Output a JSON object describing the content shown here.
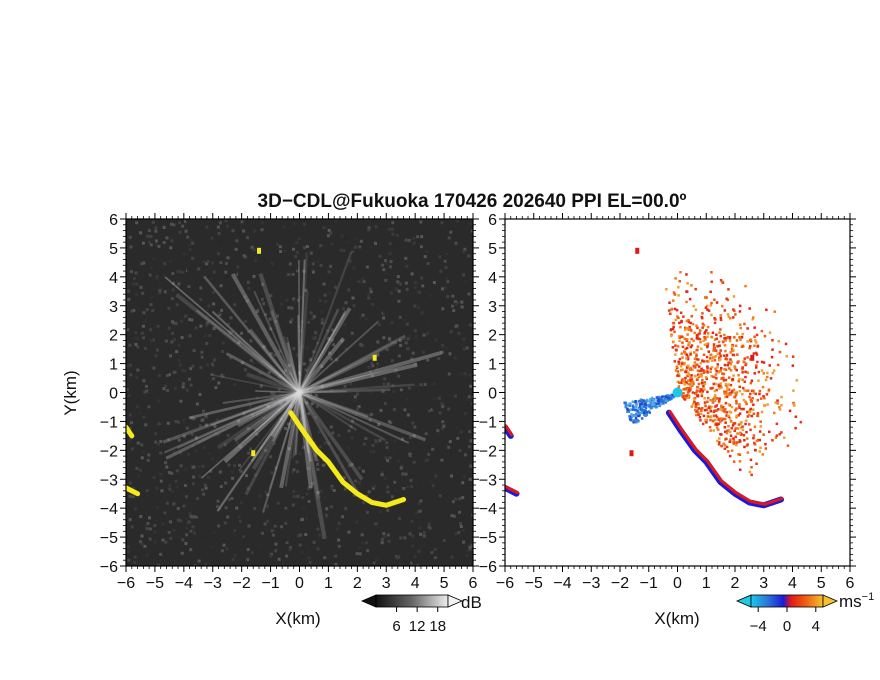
{
  "chart_data": {
    "type": "heatmap",
    "title": "3D−CDL@Fukuoka 170426 202640 PPI EL=00.0º",
    "panels": [
      {
        "name": "intensity",
        "xlabel": "X(km)",
        "ylabel": "Y(km)",
        "xlim": [
          -6,
          6
        ],
        "ylim": [
          -6,
          6
        ],
        "xticks": [
          "−6",
          "−5",
          "−4",
          "−3",
          "−2",
          "−1",
          "0",
          "1",
          "2",
          "3",
          "4",
          "5",
          "6"
        ],
        "yticks": [
          "6",
          "5",
          "4",
          "3",
          "2",
          "1",
          "0",
          "−1",
          "−2",
          "−3",
          "−4",
          "−5",
          "−6"
        ],
        "background": "#2a2a2a",
        "colorbar": {
          "unit": "dB",
          "ticks": [
            "6",
            "12",
            "18"
          ],
          "range": [
            0,
            21
          ]
        },
        "highlight_color": "#f5ea1a"
      },
      {
        "name": "velocity",
        "xlabel": "X(km)",
        "ylabel": "",
        "xlim": [
          -6,
          6
        ],
        "ylim": [
          -6,
          6
        ],
        "xticks": [
          "−6",
          "−5",
          "−4",
          "−3",
          "−2",
          "−1",
          "0",
          "1",
          "2",
          "3",
          "4",
          "5",
          "6"
        ],
        "yticks": [
          "6",
          "5",
          "4",
          "3",
          "2",
          "1",
          "0",
          "−1",
          "−2",
          "−3",
          "−4",
          "−5",
          "−6"
        ],
        "background": "#ffffff",
        "colorbar": {
          "unit": "ms",
          "unit_exponent": "−1",
          "ticks": [
            "−4",
            "0",
            "4"
          ],
          "range": [
            -5,
            5
          ]
        }
      }
    ],
    "echo_regions": [
      {
        "name": "southeast line",
        "points": [
          [
            -0.3,
            -0.7
          ],
          [
            0.1,
            -1.3
          ],
          [
            0.6,
            -2.0
          ],
          [
            1.0,
            -2.4
          ],
          [
            1.5,
            -3.1
          ],
          [
            2.0,
            -3.5
          ],
          [
            2.5,
            -3.8
          ],
          [
            3.0,
            -3.9
          ],
          [
            3.6,
            -3.7
          ]
        ]
      },
      {
        "name": "west edge upper",
        "points": [
          [
            -6.0,
            -1.2
          ],
          [
            -5.8,
            -1.5
          ]
        ]
      },
      {
        "name": "west edge lower",
        "points": [
          [
            -6.0,
            -3.3
          ],
          [
            -5.6,
            -3.5
          ]
        ]
      },
      {
        "name": "small echo north",
        "points": [
          [
            -1.4,
            4.9
          ]
        ]
      },
      {
        "name": "small echo southwest",
        "points": [
          [
            -1.6,
            -2.1
          ]
        ]
      },
      {
        "name": "small echo east",
        "points": [
          [
            2.6,
            1.2
          ]
        ]
      }
    ]
  }
}
